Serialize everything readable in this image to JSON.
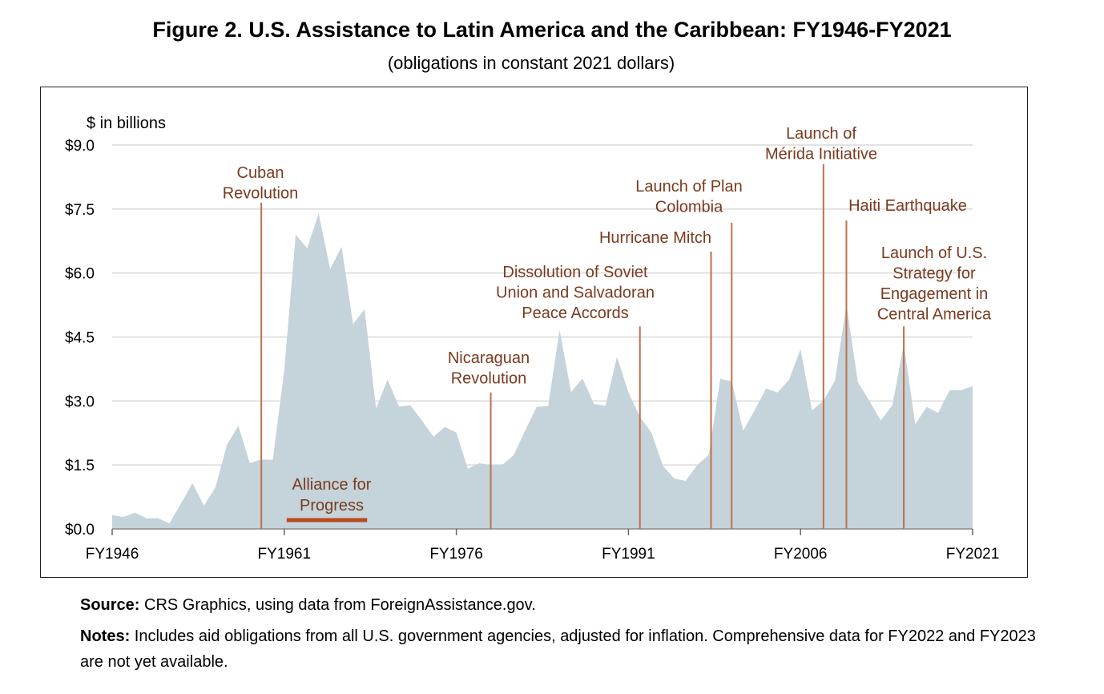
{
  "title": "Figure 2. U.S. Assistance to Latin America and the Caribbean: FY1946-FY2021",
  "subtitle": "(obligations in constant 2021 dollars)",
  "source_label": "Source:",
  "source_text": " CRS Graphics, using data from ForeignAssistance.gov.",
  "notes_label": "Notes:",
  "notes_text": " Includes aid obligations from all U.S. government agencies, adjusted for inflation. Comprehensive data for FY2022 and FY2023 are not yet available.",
  "colors": {
    "area": "#c5d3da",
    "annotation_line": "#c0704a",
    "annotation_text": "#7a3a1e",
    "alliance_bar": "#b94a1c",
    "grid": "#d9d9d9"
  },
  "chart_data": {
    "type": "area",
    "title": "Figure 2. U.S. Assistance to Latin America and the Caribbean: FY1946-FY2021",
    "ylabel": "$ in billions",
    "xlabel": "",
    "ylim": [
      0,
      9
    ],
    "xlim": [
      1946,
      2021
    ],
    "yticks": [
      0,
      1.5,
      3.0,
      4.5,
      6.0,
      7.5,
      9.0
    ],
    "ytick_labels": [
      "$0.0",
      "$1.5",
      "$3.0",
      "$4.5",
      "$6.0",
      "$7.5",
      "$9.0"
    ],
    "xticks": [
      1946,
      1961,
      1976,
      1991,
      2006,
      2021
    ],
    "xtick_labels": [
      "FY1946",
      "FY1961",
      "FY1976",
      "FY1991",
      "FY2006",
      "FY2021"
    ],
    "grid": true,
    "x": [
      1946,
      1947,
      1948,
      1949,
      1950,
      1951,
      1952,
      1953,
      1954,
      1955,
      1956,
      1957,
      1958,
      1959,
      1960,
      1961,
      1962,
      1963,
      1964,
      1965,
      1966,
      1967,
      1968,
      1969,
      1970,
      1971,
      1972,
      1973,
      1974,
      1975,
      1976,
      1977,
      1978,
      1979,
      1980,
      1981,
      1982,
      1983,
      1984,
      1985,
      1986,
      1987,
      1988,
      1989,
      1990,
      1991,
      1992,
      1993,
      1994,
      1995,
      1996,
      1997,
      1998,
      1999,
      2000,
      2001,
      2002,
      2003,
      2004,
      2005,
      2006,
      2007,
      2008,
      2009,
      2010,
      2011,
      2012,
      2013,
      2014,
      2015,
      2016,
      2017,
      2018,
      2019,
      2020,
      2021
    ],
    "values": [
      0.32,
      0.28,
      0.38,
      0.25,
      0.25,
      0.13,
      0.6,
      1.07,
      0.55,
      0.97,
      1.97,
      2.42,
      1.54,
      1.63,
      1.62,
      3.72,
      6.9,
      6.58,
      7.4,
      6.09,
      6.62,
      4.8,
      5.15,
      2.82,
      3.5,
      2.87,
      2.9,
      2.54,
      2.16,
      2.39,
      2.26,
      1.41,
      1.54,
      1.5,
      1.5,
      1.73,
      2.31,
      2.86,
      2.88,
      4.66,
      3.21,
      3.53,
      2.93,
      2.89,
      4.04,
      3.2,
      2.63,
      2.26,
      1.48,
      1.18,
      1.13,
      1.5,
      1.73,
      3.52,
      3.46,
      2.3,
      2.78,
      3.29,
      3.2,
      3.5,
      4.21,
      2.78,
      3.0,
      3.48,
      5.26,
      3.44,
      3.0,
      2.54,
      2.9,
      4.32,
      2.46,
      2.86,
      2.72,
      3.25,
      3.25,
      3.35
    ],
    "annotations": [
      {
        "year": 1959,
        "top": 7.65,
        "lines": [
          "Cuban",
          "Revolution"
        ]
      },
      {
        "year": 1979,
        "top": 3.2,
        "lines": [
          "Nicaraguan",
          "Revolution"
        ]
      },
      {
        "year": 1992,
        "top": 4.75,
        "lines": [
          "Dissolution of Soviet",
          "Union and Salvadoran",
          "Peace Accords"
        ]
      },
      {
        "year": 1998.2,
        "top": 6.5,
        "lines": [
          "Hurricane Mitch"
        ]
      },
      {
        "year": 2000,
        "top": 7.18,
        "lines": [
          "Launch of Plan",
          "Colombia"
        ]
      },
      {
        "year": 2008,
        "top": 8.55,
        "lines": [
          "Launch of",
          "Mérida Initiative"
        ]
      },
      {
        "year": 2010,
        "top": 7.23,
        "lines": [
          "Haiti Earthquake"
        ]
      },
      {
        "year": 2015,
        "top": 4.75,
        "lines": [
          "Launch of U.S.",
          "Strategy for",
          "Engagement in",
          "Central America"
        ]
      }
    ],
    "period": {
      "start": 1961,
      "end": 1968.5,
      "lines": [
        "Alliance for",
        "Progress"
      ]
    }
  }
}
